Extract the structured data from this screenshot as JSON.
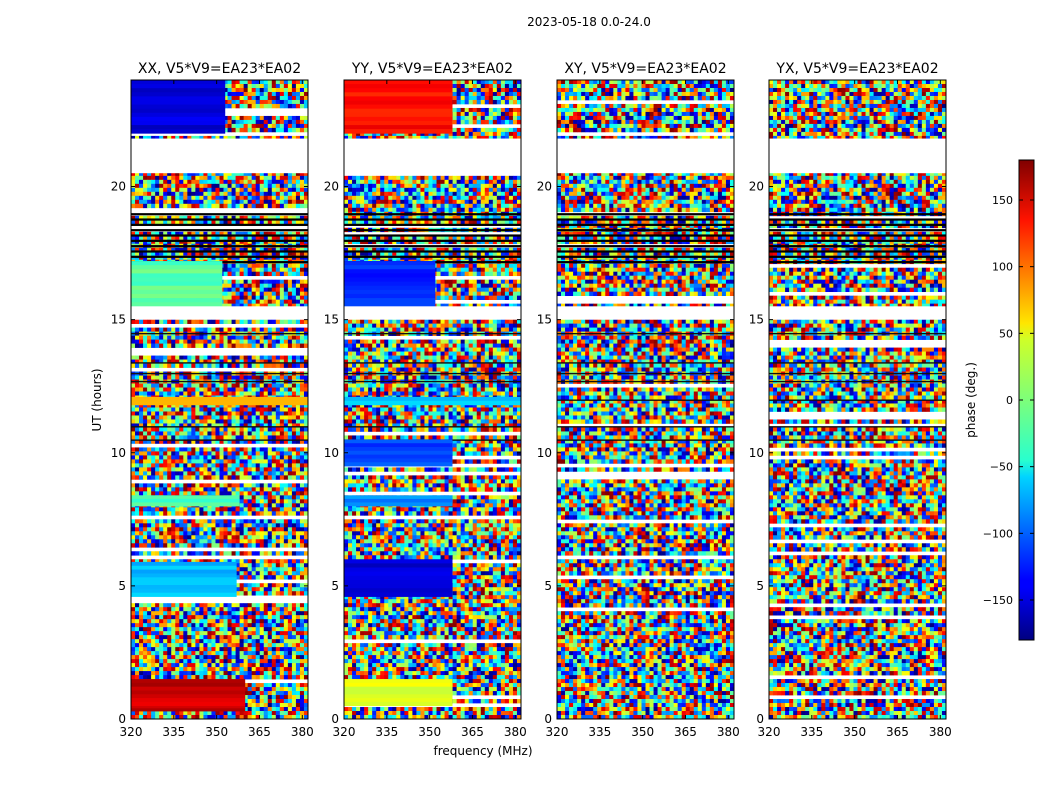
{
  "chart_data": {
    "type": "heatmap",
    "suptitle": "2023-05-18 0.0-24.0",
    "xlabel": "frequency (MHz)",
    "ylabel": "UT (hours)",
    "xlim": [
      320,
      382
    ],
    "ylim": [
      0,
      24
    ],
    "xticks": [
      "320",
      "335",
      "350",
      "365",
      "380"
    ],
    "xtick_values": [
      320,
      335,
      350,
      365,
      380
    ],
    "yticks": [
      "0",
      "5",
      "10",
      "15",
      "20"
    ],
    "ytick_values": [
      0,
      5,
      10,
      15,
      20
    ],
    "colorbar": {
      "label": "phase (deg.)",
      "range": [
        -180,
        180
      ],
      "ticks": [
        "150",
        "100",
        "50",
        "0",
        "−50",
        "−100",
        "−150"
      ],
      "tick_values": [
        150,
        100,
        50,
        0,
        -50,
        -100,
        -150
      ],
      "colormap": "jet"
    },
    "gap_intervals_hours": [
      [
        21.8,
        20.5
      ],
      [
        15.5,
        15.0
      ]
    ],
    "panels": [
      {
        "title": "XX, V5*V9=EA23*EA02",
        "coherent_blocks": [
          {
            "t0": 0.3,
            "t1": 0.5,
            "f0": 320,
            "f1": 360,
            "phase": 150
          },
          {
            "t0": 0.5,
            "t1": 1.5,
            "f0": 320,
            "f1": 360,
            "phase": 155
          },
          {
            "t0": 4.6,
            "t1": 5.9,
            "f0": 320,
            "f1": 357,
            "phase": -70
          },
          {
            "t0": 8.0,
            "t1": 8.4,
            "f0": 320,
            "f1": 358,
            "phase": -20
          },
          {
            "t0": 11.8,
            "t1": 12.1,
            "f0": 320,
            "f1": 382,
            "phase": 70
          },
          {
            "t0": 15.5,
            "t1": 17.2,
            "f0": 320,
            "f1": 352,
            "phase": -15
          },
          {
            "t0": 22.0,
            "t1": 24.0,
            "f0": 320,
            "f1": 353,
            "phase": -150
          }
        ]
      },
      {
        "title": "YY, V5*V9=EA23*EA02",
        "coherent_blocks": [
          {
            "t0": 0.5,
            "t1": 1.5,
            "f0": 320,
            "f1": 358,
            "phase": 40
          },
          {
            "t0": 4.6,
            "t1": 6.0,
            "f0": 320,
            "f1": 358,
            "phase": -150
          },
          {
            "t0": 8.0,
            "t1": 8.4,
            "f0": 320,
            "f1": 358,
            "phase": -90
          },
          {
            "t0": 9.5,
            "t1": 10.5,
            "f0": 320,
            "f1": 358,
            "phase": -110
          },
          {
            "t0": 11.8,
            "t1": 12.1,
            "f0": 320,
            "f1": 382,
            "phase": -60
          },
          {
            "t0": 15.5,
            "t1": 17.2,
            "f0": 320,
            "f1": 352,
            "phase": -120
          },
          {
            "t0": 22.0,
            "t1": 24.0,
            "f0": 320,
            "f1": 358,
            "phase": 130
          }
        ]
      },
      {
        "title": "XY, V5*V9=EA23*EA02",
        "coherent_blocks": []
      },
      {
        "title": "YX, V5*V9=EA23*EA02",
        "coherent_blocks": []
      }
    ]
  }
}
